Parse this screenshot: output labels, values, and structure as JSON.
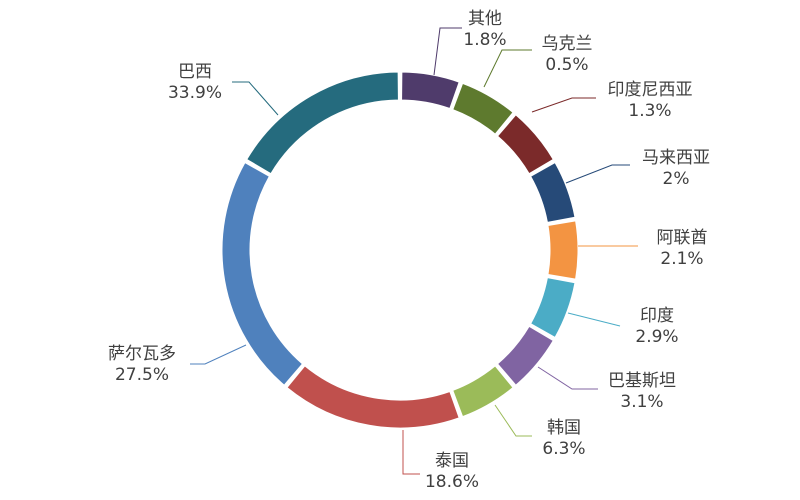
{
  "chart_data": {
    "type": "pie",
    "variant": "donut",
    "title": "",
    "slices": [
      {
        "label": "其他",
        "value_label": "1.8%",
        "value": 1.8,
        "color": "#4f3b6b",
        "angle_deg": 20
      },
      {
        "label": "乌克兰",
        "value_label": "0.5%",
        "value": 0.5,
        "color": "#5e7a2e",
        "angle_deg": 20
      },
      {
        "label": "印度尼西亚",
        "value_label": "1.3%",
        "value": 1.3,
        "color": "#7b2a2a",
        "angle_deg": 20
      },
      {
        "label": "马来西亚",
        "value_label": "2%",
        "value": 2,
        "color": "#264a78",
        "angle_deg": 20
      },
      {
        "label": "阿联酋",
        "value_label": "2.1%",
        "value": 2.1,
        "color": "#f39442",
        "angle_deg": 20
      },
      {
        "label": "印度",
        "value_label": "2.9%",
        "value": 2.9,
        "color": "#4bacc6",
        "angle_deg": 20
      },
      {
        "label": "巴基斯坦",
        "value_label": "3.1%",
        "value": 3.1,
        "color": "#8064a2",
        "angle_deg": 20
      },
      {
        "label": "韩国",
        "value_label": "6.3%",
        "value": 6.3,
        "color": "#9bbb59",
        "angle_deg": 20
      },
      {
        "label": "泰国",
        "value_label": "18.6%",
        "value": 18.6,
        "color": "#c0504d",
        "angle_deg": 60
      },
      {
        "label": "萨尔瓦多",
        "value_label": "27.5%",
        "value": 27.5,
        "color": "#4f81bd",
        "angle_deg": 80
      },
      {
        "label": "巴西",
        "value_label": "33.9%",
        "value": 33.9,
        "color": "#256b7e",
        "angle_deg": 60
      }
    ]
  }
}
